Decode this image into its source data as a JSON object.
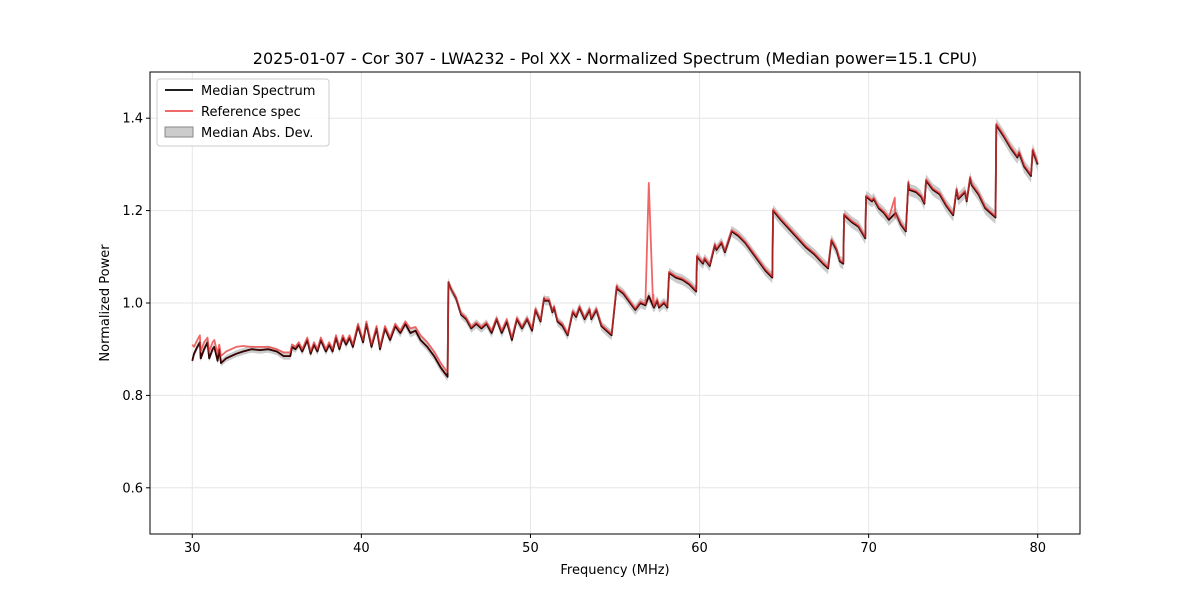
{
  "chart_data": {
    "type": "line",
    "title": "2025-01-07 - Cor 307 - LWA232 - Pol XX - Normalized Spectrum (Median power=15.1 CPU)",
    "xlabel": "Frequency (MHz)",
    "ylabel": "Normalized Power",
    "xlim": [
      27.5,
      82.5
    ],
    "ylim": [
      0.5,
      1.5
    ],
    "xticks": [
      30,
      40,
      50,
      60,
      70,
      80
    ],
    "xtick_labels": [
      "30",
      "40",
      "50",
      "60",
      "70",
      "80"
    ],
    "yticks": [
      0.6,
      0.8,
      1.0,
      1.2,
      1.4
    ],
    "ytick_labels": [
      "0.6",
      "0.8",
      "1.0",
      "1.2",
      "1.4"
    ],
    "grid": true,
    "legend_position": "top-left",
    "legend": [
      {
        "label": "Median Spectrum",
        "kind": "line",
        "color": "#000000"
      },
      {
        "label": "Reference spec",
        "kind": "line",
        "color": "#ee5555"
      },
      {
        "label": "Median Abs. Dev.",
        "kind": "patch",
        "color": "#b0b0b0"
      }
    ],
    "mad_halfwidth": 0.012,
    "series": [
      {
        "name": "Median Spectrum",
        "color": "#000000",
        "x": [
          30.0,
          30.1,
          30.3,
          30.45,
          30.5,
          30.7,
          30.9,
          31.0,
          31.2,
          31.3,
          31.5,
          31.6,
          31.7,
          32.0,
          32.3,
          32.6,
          33.0,
          33.5,
          34.0,
          34.5,
          35.0,
          35.4,
          35.8,
          35.9,
          36.1,
          36.3,
          36.5,
          36.8,
          37.0,
          37.2,
          37.4,
          37.6,
          37.9,
          38.1,
          38.3,
          38.5,
          38.7,
          38.9,
          39.1,
          39.3,
          39.5,
          39.8,
          40.1,
          40.3,
          40.6,
          40.9,
          41.1,
          41.4,
          41.7,
          42.0,
          42.3,
          42.6,
          42.9,
          43.2,
          43.5,
          43.9,
          44.3,
          44.7,
          45.1,
          45.15,
          45.3,
          45.6,
          45.9,
          46.2,
          46.5,
          46.8,
          47.1,
          47.4,
          47.7,
          48.0,
          48.3,
          48.6,
          48.9,
          49.2,
          49.5,
          49.8,
          50.1,
          50.3,
          50.6,
          50.8,
          50.85,
          51.1,
          51.3,
          51.4,
          51.6,
          51.9,
          52.2,
          52.5,
          52.7,
          52.9,
          53.2,
          53.5,
          53.6,
          53.9,
          54.2,
          54.5,
          54.8,
          55.1,
          55.15,
          55.5,
          55.9,
          56.2,
          56.5,
          56.8,
          57.0,
          57.3,
          57.5,
          57.6,
          57.9,
          58.1,
          58.2,
          58.6,
          59.0,
          59.4,
          59.8,
          59.85,
          60.2,
          60.3,
          60.6,
          60.9,
          61.0,
          61.3,
          61.5,
          61.9,
          62.3,
          62.7,
          63.1,
          63.5,
          63.9,
          64.3,
          64.35,
          64.8,
          65.3,
          65.8,
          66.3,
          66.8,
          67.3,
          67.6,
          67.8,
          68.1,
          68.3,
          68.5,
          68.55,
          69.0,
          69.4,
          69.8,
          69.85,
          70.2,
          70.3,
          70.6,
          70.9,
          71.2,
          71.6,
          71.9,
          72.2,
          72.35,
          72.4,
          72.8,
          73.1,
          73.3,
          73.4,
          73.8,
          74.2,
          74.6,
          75.0,
          75.2,
          75.3,
          75.7,
          75.8,
          76.0,
          76.1,
          76.5,
          76.9,
          77.2,
          77.5,
          77.55,
          78.0,
          78.4,
          78.8,
          78.9,
          79.2,
          79.4,
          79.6,
          79.7,
          80.0
        ],
        "y": [
          0.875,
          0.89,
          0.905,
          0.915,
          0.88,
          0.9,
          0.915,
          0.88,
          0.9,
          0.905,
          0.875,
          0.9,
          0.87,
          0.88,
          0.885,
          0.89,
          0.895,
          0.9,
          0.898,
          0.9,
          0.895,
          0.885,
          0.885,
          0.905,
          0.9,
          0.91,
          0.895,
          0.92,
          0.89,
          0.91,
          0.895,
          0.92,
          0.895,
          0.91,
          0.895,
          0.925,
          0.9,
          0.925,
          0.91,
          0.925,
          0.905,
          0.95,
          0.915,
          0.955,
          0.905,
          0.945,
          0.9,
          0.945,
          0.92,
          0.95,
          0.935,
          0.955,
          0.935,
          0.94,
          0.92,
          0.905,
          0.885,
          0.86,
          0.84,
          1.045,
          1.03,
          1.01,
          0.975,
          0.965,
          0.945,
          0.955,
          0.945,
          0.955,
          0.935,
          0.965,
          0.935,
          0.96,
          0.92,
          0.965,
          0.945,
          0.965,
          0.94,
          0.985,
          0.96,
          1.01,
          1.005,
          1.005,
          0.98,
          0.99,
          0.96,
          0.95,
          0.93,
          0.98,
          0.97,
          0.99,
          0.965,
          0.985,
          0.965,
          0.985,
          0.95,
          0.94,
          0.93,
          1.035,
          1.03,
          1.02,
          1.0,
          0.985,
          1.0,
          0.995,
          1.015,
          0.99,
          1.005,
          0.99,
          1.0,
          0.99,
          1.065,
          1.055,
          1.05,
          1.04,
          1.025,
          1.1,
          1.085,
          1.095,
          1.08,
          1.125,
          1.115,
          1.13,
          1.11,
          1.155,
          1.145,
          1.13,
          1.11,
          1.09,
          1.07,
          1.055,
          1.2,
          1.18,
          1.16,
          1.14,
          1.12,
          1.105,
          1.085,
          1.075,
          1.135,
          1.115,
          1.09,
          1.085,
          1.19,
          1.175,
          1.165,
          1.14,
          1.23,
          1.22,
          1.225,
          1.205,
          1.195,
          1.18,
          1.195,
          1.17,
          1.155,
          1.26,
          1.245,
          1.24,
          1.23,
          1.215,
          1.265,
          1.245,
          1.235,
          1.21,
          1.19,
          1.245,
          1.225,
          1.24,
          1.22,
          1.27,
          1.255,
          1.235,
          1.205,
          1.195,
          1.185,
          1.385,
          1.36,
          1.335,
          1.315,
          1.325,
          1.295,
          1.285,
          1.275,
          1.33,
          1.3
        ]
      },
      {
        "name": "Reference spec",
        "color": "#ee5555",
        "x": [
          30.0,
          30.1,
          30.3,
          30.45,
          30.5,
          30.7,
          30.9,
          31.0,
          31.2,
          31.3,
          31.5,
          31.6,
          31.7,
          32.0,
          32.3,
          32.6,
          33.0,
          33.5,
          34.0,
          34.5,
          35.0,
          35.4,
          35.8,
          35.9,
          36.1,
          36.3,
          36.5,
          36.8,
          37.0,
          37.2,
          37.4,
          37.6,
          37.9,
          38.1,
          38.3,
          38.5,
          38.7,
          38.9,
          39.1,
          39.3,
          39.5,
          39.8,
          40.1,
          40.3,
          40.6,
          40.9,
          41.1,
          41.4,
          41.7,
          42.0,
          42.3,
          42.6,
          42.9,
          43.2,
          43.5,
          43.9,
          44.3,
          44.7,
          45.1,
          45.15,
          45.3,
          45.6,
          45.9,
          46.2,
          46.5,
          46.8,
          47.1,
          47.4,
          47.7,
          48.0,
          48.3,
          48.6,
          48.9,
          49.2,
          49.5,
          49.8,
          50.1,
          50.3,
          50.6,
          50.8,
          50.85,
          51.1,
          51.3,
          51.4,
          51.6,
          51.9,
          52.2,
          52.5,
          52.7,
          52.9,
          53.2,
          53.5,
          53.6,
          53.9,
          54.2,
          54.5,
          54.8,
          55.1,
          55.15,
          55.5,
          55.9,
          56.2,
          56.5,
          56.8,
          57.0,
          57.25,
          57.27,
          57.3,
          57.5,
          57.6,
          57.9,
          58.1,
          58.2,
          58.6,
          59.0,
          59.4,
          59.8,
          59.85,
          60.2,
          60.3,
          60.6,
          60.9,
          61.0,
          61.3,
          61.5,
          61.9,
          62.3,
          62.7,
          63.1,
          63.5,
          63.9,
          64.3,
          64.35,
          64.8,
          65.3,
          65.8,
          66.3,
          66.8,
          67.3,
          67.6,
          67.8,
          68.1,
          68.3,
          68.5,
          68.55,
          69.0,
          69.4,
          69.8,
          69.85,
          70.2,
          70.3,
          70.6,
          70.9,
          71.2,
          71.55,
          71.57,
          71.6,
          71.9,
          72.2,
          72.35,
          72.4,
          72.8,
          73.1,
          73.3,
          73.4,
          73.8,
          74.2,
          74.6,
          75.0,
          75.2,
          75.3,
          75.7,
          75.8,
          76.0,
          76.1,
          76.5,
          76.9,
          77.2,
          77.5,
          77.55,
          78.0,
          78.4,
          78.8,
          78.9,
          79.2,
          79.4,
          79.6,
          79.7,
          80.0
        ],
        "y": [
          0.91,
          0.905,
          0.92,
          0.93,
          0.895,
          0.915,
          0.925,
          0.895,
          0.915,
          0.92,
          0.89,
          0.91,
          0.885,
          0.895,
          0.9,
          0.905,
          0.907,
          0.905,
          0.905,
          0.905,
          0.9,
          0.893,
          0.893,
          0.91,
          0.905,
          0.915,
          0.9,
          0.925,
          0.895,
          0.915,
          0.9,
          0.925,
          0.9,
          0.915,
          0.9,
          0.93,
          0.905,
          0.93,
          0.915,
          0.93,
          0.91,
          0.955,
          0.92,
          0.96,
          0.91,
          0.95,
          0.905,
          0.95,
          0.925,
          0.955,
          0.94,
          0.96,
          0.945,
          0.948,
          0.93,
          0.915,
          0.895,
          0.87,
          0.85,
          1.045,
          1.03,
          1.012,
          0.978,
          0.968,
          0.948,
          0.958,
          0.948,
          0.958,
          0.94,
          0.968,
          0.94,
          0.965,
          0.925,
          0.968,
          0.948,
          0.968,
          0.945,
          0.988,
          0.963,
          1.012,
          1.008,
          1.008,
          0.983,
          0.993,
          0.963,
          0.955,
          0.933,
          0.983,
          0.973,
          0.993,
          0.968,
          0.988,
          0.968,
          0.988,
          0.953,
          0.943,
          0.933,
          1.038,
          1.033,
          1.023,
          1.003,
          0.988,
          1.003,
          0.998,
          1.26,
          1.0,
          1.018,
          0.993,
          1.008,
          0.993,
          1.003,
          0.993,
          1.068,
          1.058,
          1.053,
          1.043,
          1.028,
          1.103,
          1.088,
          1.098,
          1.083,
          1.128,
          1.118,
          1.133,
          1.113,
          1.158,
          1.148,
          1.133,
          1.113,
          1.093,
          1.073,
          1.058,
          1.203,
          1.183,
          1.163,
          1.143,
          1.123,
          1.108,
          1.088,
          1.078,
          1.138,
          1.118,
          1.093,
          1.088,
          1.193,
          1.178,
          1.168,
          1.143,
          1.233,
          1.223,
          1.228,
          1.208,
          1.198,
          1.185,
          1.228,
          1.185,
          1.195,
          1.173,
          1.158,
          1.263,
          1.248,
          1.243,
          1.233,
          1.218,
          1.268,
          1.248,
          1.238,
          1.213,
          1.193,
          1.248,
          1.228,
          1.243,
          1.223,
          1.273,
          1.258,
          1.238,
          1.208,
          1.198,
          1.188,
          1.388,
          1.363,
          1.338,
          1.318,
          1.328,
          1.298,
          1.288,
          1.278,
          1.333,
          1.303
        ]
      }
    ]
  }
}
